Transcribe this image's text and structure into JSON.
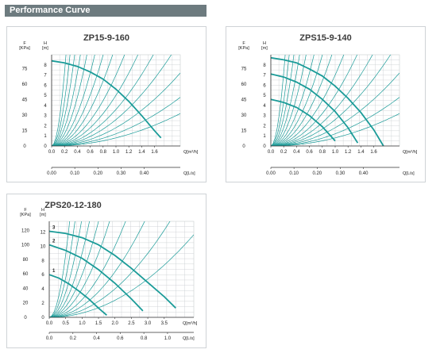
{
  "header": {
    "title": "Performance Curve"
  },
  "colors": {
    "teal": "#1a9b98",
    "grid": "#c8ccce",
    "axis": "#333333",
    "header": "#6d7b7f"
  },
  "chart_data": [
    {
      "type": "line",
      "title": "ZP15-9-160",
      "y_left_label": "F",
      "y_left_unit": "[KPa]",
      "y_right_label": "H",
      "y_right_unit": "[m]",
      "x_unit": "Q[m³/h]",
      "x2_unit": "Q[L/s]",
      "xlim": [
        0,
        2.0
      ],
      "ylim": [
        0,
        9
      ],
      "x_ticks": [
        "0.0",
        "0.2",
        "0.4",
        "0.6",
        "0.8",
        "1.0",
        "1.2",
        "1.4",
        "1.6"
      ],
      "x2_ticks": [
        "0.00",
        "0.10",
        "0.20",
        "0.30",
        "0.40"
      ],
      "y_ticks": [
        "0",
        "1",
        "2",
        "3",
        "4",
        "5",
        "6",
        "7",
        "8"
      ],
      "kpa_ticks": [
        "0",
        "15",
        "30",
        "45",
        "60",
        "75"
      ],
      "series": [
        {
          "x": [
            0,
            0.2,
            0.4,
            0.6,
            0.8,
            1.0,
            1.2,
            1.4,
            1.6,
            1.7
          ],
          "y": [
            8.4,
            8.2,
            7.85,
            7.3,
            6.6,
            5.6,
            4.4,
            3.0,
            1.5,
            0.8
          ]
        }
      ],
      "system_curve_k": [
        0.8,
        1.2,
        1.8,
        2.6,
        3.6,
        5,
        7,
        10,
        14,
        20,
        30,
        45,
        70,
        110,
        180
      ]
    },
    {
      "type": "line",
      "title": "ZPS15-9-140",
      "y_left_label": "F",
      "y_left_unit": "[KPa]",
      "y_right_label": "H",
      "y_right_unit": "[m]",
      "x_unit": "Q[m³/h]",
      "x2_unit": "Q[L/s]",
      "xlim": [
        0,
        2.0
      ],
      "ylim": [
        0,
        9
      ],
      "x_ticks": [
        "0.0",
        "0.2",
        "0.4",
        "0.6",
        "0.8",
        "1.0",
        "1.2",
        "1.4",
        "1.6"
      ],
      "x2_ticks": [
        "0.00",
        "0.10",
        "0.20",
        "0.30",
        "0.40"
      ],
      "y_ticks": [
        "0",
        "1",
        "2",
        "3",
        "4",
        "5",
        "6",
        "7",
        "8"
      ],
      "kpa_ticks": [
        "0",
        "15",
        "30",
        "45",
        "60",
        "75"
      ],
      "series": [
        {
          "x": [
            0,
            0.2,
            0.4,
            0.6,
            0.8,
            1.0,
            1.2,
            1.4,
            1.6,
            1.75
          ],
          "y": [
            8.7,
            8.5,
            8.2,
            7.6,
            6.9,
            5.9,
            4.7,
            3.3,
            1.6,
            0.0
          ]
        },
        {
          "x": [
            0,
            0.2,
            0.4,
            0.6,
            0.8,
            1.0,
            1.2,
            1.35
          ],
          "y": [
            7.1,
            6.8,
            6.3,
            5.6,
            4.6,
            3.4,
            1.8,
            0.3
          ]
        },
        {
          "x": [
            0,
            0.2,
            0.4,
            0.6,
            0.8,
            1.0
          ],
          "y": [
            4.6,
            4.3,
            3.8,
            3.0,
            1.9,
            0.5
          ]
        }
      ],
      "system_curve_k": [
        0.8,
        1.2,
        1.8,
        2.6,
        3.6,
        5,
        7,
        10,
        14,
        20,
        30,
        45,
        70,
        110,
        180
      ]
    },
    {
      "type": "line",
      "title": "ZPS20-12-180",
      "y_left_label": "F",
      "y_left_unit": "[KPa]",
      "y_right_label": "H",
      "y_right_unit": "[m]",
      "x_unit": "Q[m³/h]",
      "x2_unit": "Q[L/s]",
      "xlim": [
        0,
        4.4
      ],
      "ylim": [
        0,
        13.5
      ],
      "x_ticks": [
        "0.0",
        "0.5",
        "1.0",
        "1.5",
        "2.0",
        "2.5",
        "3.0",
        "3.5"
      ],
      "x2_ticks": [
        "0.0",
        "0.2",
        "0.4",
        "0.6",
        "0.8",
        "1.0"
      ],
      "y_ticks": [
        "0",
        "2",
        "4",
        "6",
        "8",
        "10",
        "12"
      ],
      "kpa_ticks": [
        "0",
        "20",
        "40",
        "60",
        "80",
        "100",
        "120"
      ],
      "speed_labels": [
        "1",
        "2",
        "3"
      ],
      "series": [
        {
          "x": [
            0,
            0.5,
            1.0,
            1.5,
            2.0,
            2.5,
            3.0,
            3.5,
            3.85
          ],
          "y": [
            12.1,
            11.8,
            11.2,
            10.2,
            8.7,
            6.9,
            4.9,
            2.9,
            1.3
          ]
        },
        {
          "x": [
            0,
            0.5,
            1.0,
            1.5,
            2.0,
            2.5,
            2.85
          ],
          "y": [
            10.2,
            9.4,
            8.3,
            6.7,
            4.8,
            2.6,
            0.9
          ]
        },
        {
          "x": [
            0,
            0.3,
            0.6,
            0.9,
            1.2,
            1.5,
            1.75
          ],
          "y": [
            6.0,
            5.5,
            4.7,
            3.7,
            2.6,
            1.3,
            0.3
          ]
        }
      ],
      "system_curve_k": [
        0.6,
        1.0,
        1.6,
        2.5,
        4,
        6,
        9,
        14,
        22,
        35
      ]
    }
  ]
}
